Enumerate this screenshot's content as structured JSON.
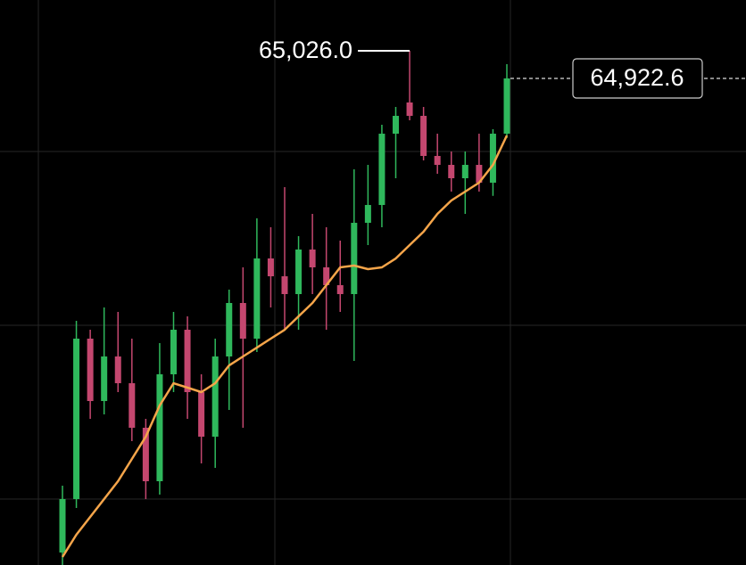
{
  "chart_data": {
    "type": "candlestick",
    "ylim": [
      63101.6,
      65216
    ],
    "up_color": "#2fb85c",
    "down_color": "#c4476f",
    "candles": {
      "open": [
        63148.3,
        63348.4,
        63948.7,
        63715.2,
        63882.0,
        63781.9,
        63615.2,
        63415.1,
        63815.3,
        63982.0,
        63748.6,
        63581.8,
        63882.0,
        64082.1,
        63948.7,
        64248.8,
        64182.1,
        64115.4,
        64282.2,
        64215.5,
        64148.8,
        64115.4,
        64382.2,
        64448.9,
        64715.7,
        64832.5,
        64782.4,
        64632.4,
        64599.0,
        64549.0,
        64599.0,
        64532.3,
        64715.7
      ],
      "high": [
        63398.4,
        64015.4,
        63982.0,
        64065.4,
        64048.7,
        63948.7,
        63648.5,
        63932.0,
        64048.7,
        64032.1,
        63815.3,
        63948.7,
        64132.1,
        64215.5,
        64398.9,
        64365.6,
        64515.6,
        64332.2,
        64415.6,
        64365.6,
        64315.5,
        64582.3,
        64599.0,
        64749.1,
        64815.8,
        65026.0,
        64815.8,
        64715.7,
        64649.0,
        64649.0,
        64715.7,
        64732.4,
        64975.9
      ],
      "low": [
        63101.6,
        63315.0,
        63648.5,
        63665.2,
        63748.6,
        63565.2,
        63348.4,
        63365.1,
        63748.6,
        63648.5,
        63481.8,
        63465.1,
        63681.9,
        63615.2,
        63898.7,
        64065.4,
        63982.0,
        63982.0,
        64115.4,
        63982.0,
        64048.7,
        63865.3,
        64298.9,
        64365.6,
        64549.0,
        64765.8,
        64615.7,
        64565.7,
        64499.0,
        64415.6,
        64499.0,
        64483.0,
        64699.1
      ],
      "close": [
        63348.4,
        63948.7,
        63715.2,
        63882.0,
        63781.9,
        63615.2,
        63415.1,
        63815.3,
        63982.0,
        63748.6,
        63581.8,
        63882.0,
        64082.1,
        63948.7,
        64248.8,
        64182.1,
        64115.4,
        64282.2,
        64215.5,
        64148.8,
        64115.4,
        64382.2,
        64448.9,
        64715.7,
        64782.4,
        64782.4,
        64632.4,
        64599.0,
        64549.0,
        64599.0,
        64532.3,
        64715.7,
        64922.6
      ]
    },
    "ma": {
      "color": "#f5a54a",
      "values": [
        63131.6,
        63215.0,
        63281.7,
        63348.4,
        63415.1,
        63498.5,
        63581.8,
        63698.6,
        63781.9,
        63765.3,
        63748.6,
        63781.9,
        63848.6,
        63882.0,
        63915.3,
        63948.7,
        63982.0,
        64032.1,
        64082.1,
        64148.8,
        64215.5,
        64222.2,
        64208.8,
        64215.5,
        64248.8,
        64298.9,
        64348.9,
        64415.6,
        64465.6,
        64499.0,
        64532.3,
        64599.0,
        64709.1
      ]
    },
    "max_label": "65,026.0",
    "last_label": "64,922.6"
  }
}
